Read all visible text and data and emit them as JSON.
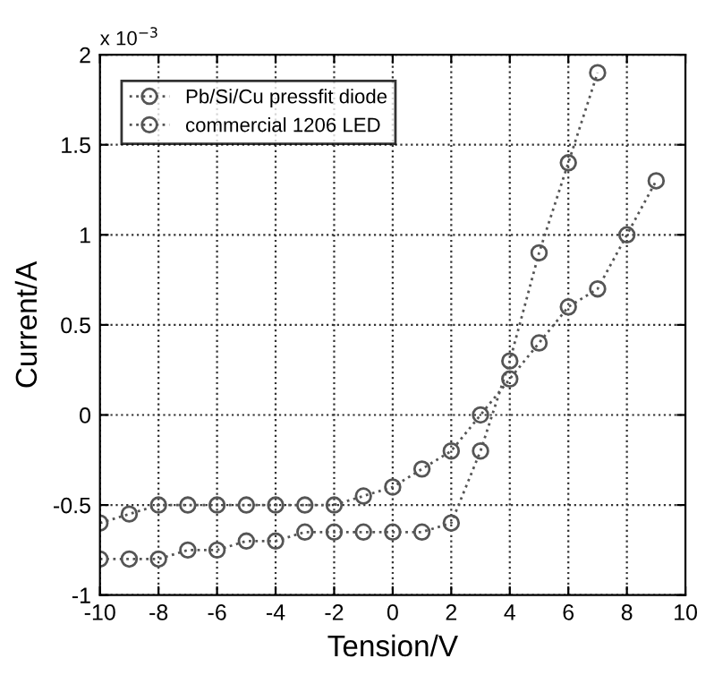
{
  "chart_data": {
    "type": "line",
    "xlabel": "Tension/V",
    "ylabel": "Current/A",
    "annotations": [
      "x 10$^{−3}$"
    ],
    "series": [
      {
        "name": "Pb/Si/Cu pressfit diode",
        "color": "#555555",
        "x": [
          -10,
          -9,
          -8,
          -7,
          -6,
          -5,
          -4,
          -3,
          -2,
          -1,
          0,
          1,
          2,
          3,
          4,
          5,
          6,
          7,
          8,
          9
        ],
        "values": [
          -0.6,
          -0.55,
          -0.5,
          -0.5,
          -0.5,
          -0.5,
          -0.5,
          -0.5,
          -0.5,
          -0.45,
          -0.4,
          -0.3,
          -0.2,
          0,
          0.2,
          0.4,
          0.6,
          0.7,
          1.0,
          1.3
        ]
      },
      {
        "name": "commercial 1206 LED",
        "color": "#555555",
        "x": [
          -10,
          -9,
          -8,
          -7,
          -6,
          -5,
          -4,
          -3,
          -2,
          -1,
          0,
          1,
          2,
          3,
          4,
          5,
          6,
          7
        ],
        "values": [
          -0.8,
          -0.8,
          -0.8,
          -0.75,
          -0.75,
          -0.7,
          -0.7,
          -0.65,
          -0.65,
          -0.65,
          -0.65,
          -0.65,
          -0.6,
          -0.2,
          0.3,
          0.9,
          1.4,
          1.9
        ]
      }
    ],
    "xlim": [
      -10,
      10
    ],
    "xticks": [
      -10,
      -8,
      -6,
      -4,
      -2,
      0,
      2,
      4,
      6,
      8,
      10
    ],
    "ylim": [
      -1,
      2
    ],
    "yticks": [
      -1,
      -0.5,
      0,
      0.5,
      1,
      1.5,
      2
    ],
    "grid": true,
    "legend": "top left",
    "marker": "circle",
    "line_style": "dotted"
  }
}
